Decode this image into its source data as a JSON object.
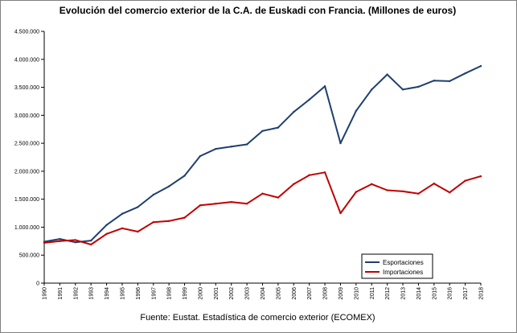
{
  "chart_data": {
    "type": "line",
    "title": "Evolución del comercio exterior de la C.A. de Euskadi con Francia. (Millones de euros)",
    "source": "Fuente: Eustat. Estadística de comercio exterior (ECOMEX)",
    "xlabel": "",
    "ylabel": "",
    "x": [
      "1990",
      "1991",
      "1992",
      "1993",
      "1994",
      "1995",
      "1996",
      "1997",
      "1998",
      "1999",
      "2000",
      "2001",
      "2002",
      "2003",
      "2004",
      "2005",
      "2006",
      "2007",
      "2008",
      "2009",
      "2010",
      "2011",
      "2012",
      "2013",
      "2014",
      "2015",
      "2016",
      "2017",
      "2018"
    ],
    "ylim": [
      0,
      4500
    ],
    "yticks": [
      0,
      500,
      1000,
      1500,
      2000,
      2500,
      3000,
      3500,
      4000,
      4500
    ],
    "ytick_labels": [
      "0",
      "500.000",
      "1.000.000",
      "1.500.000",
      "2.000.000",
      "2.500.000",
      "3.000.000",
      "3.500.000",
      "4.000.000",
      "4.500.000"
    ],
    "grid": false,
    "legend_position": "bottom-right",
    "series": [
      {
        "name": "Esportaciones",
        "color": "#1f3f6e",
        "values": [
          740,
          790,
          730,
          760,
          1040,
          1240,
          1360,
          1580,
          1730,
          1920,
          2270,
          2400,
          2440,
          2480,
          2720,
          2780,
          3060,
          3280,
          3520,
          2500,
          3080,
          3460,
          3730,
          3460,
          3510,
          3620,
          3610,
          3750,
          3880
        ]
      },
      {
        "name": "Importaciones",
        "color": "#c00000",
        "values": [
          720,
          750,
          770,
          690,
          880,
          980,
          920,
          1090,
          1110,
          1170,
          1390,
          1420,
          1450,
          1420,
          1600,
          1530,
          1770,
          1930,
          1980,
          1250,
          1630,
          1770,
          1660,
          1640,
          1600,
          1780,
          1620,
          1830,
          1910
        ]
      }
    ]
  }
}
